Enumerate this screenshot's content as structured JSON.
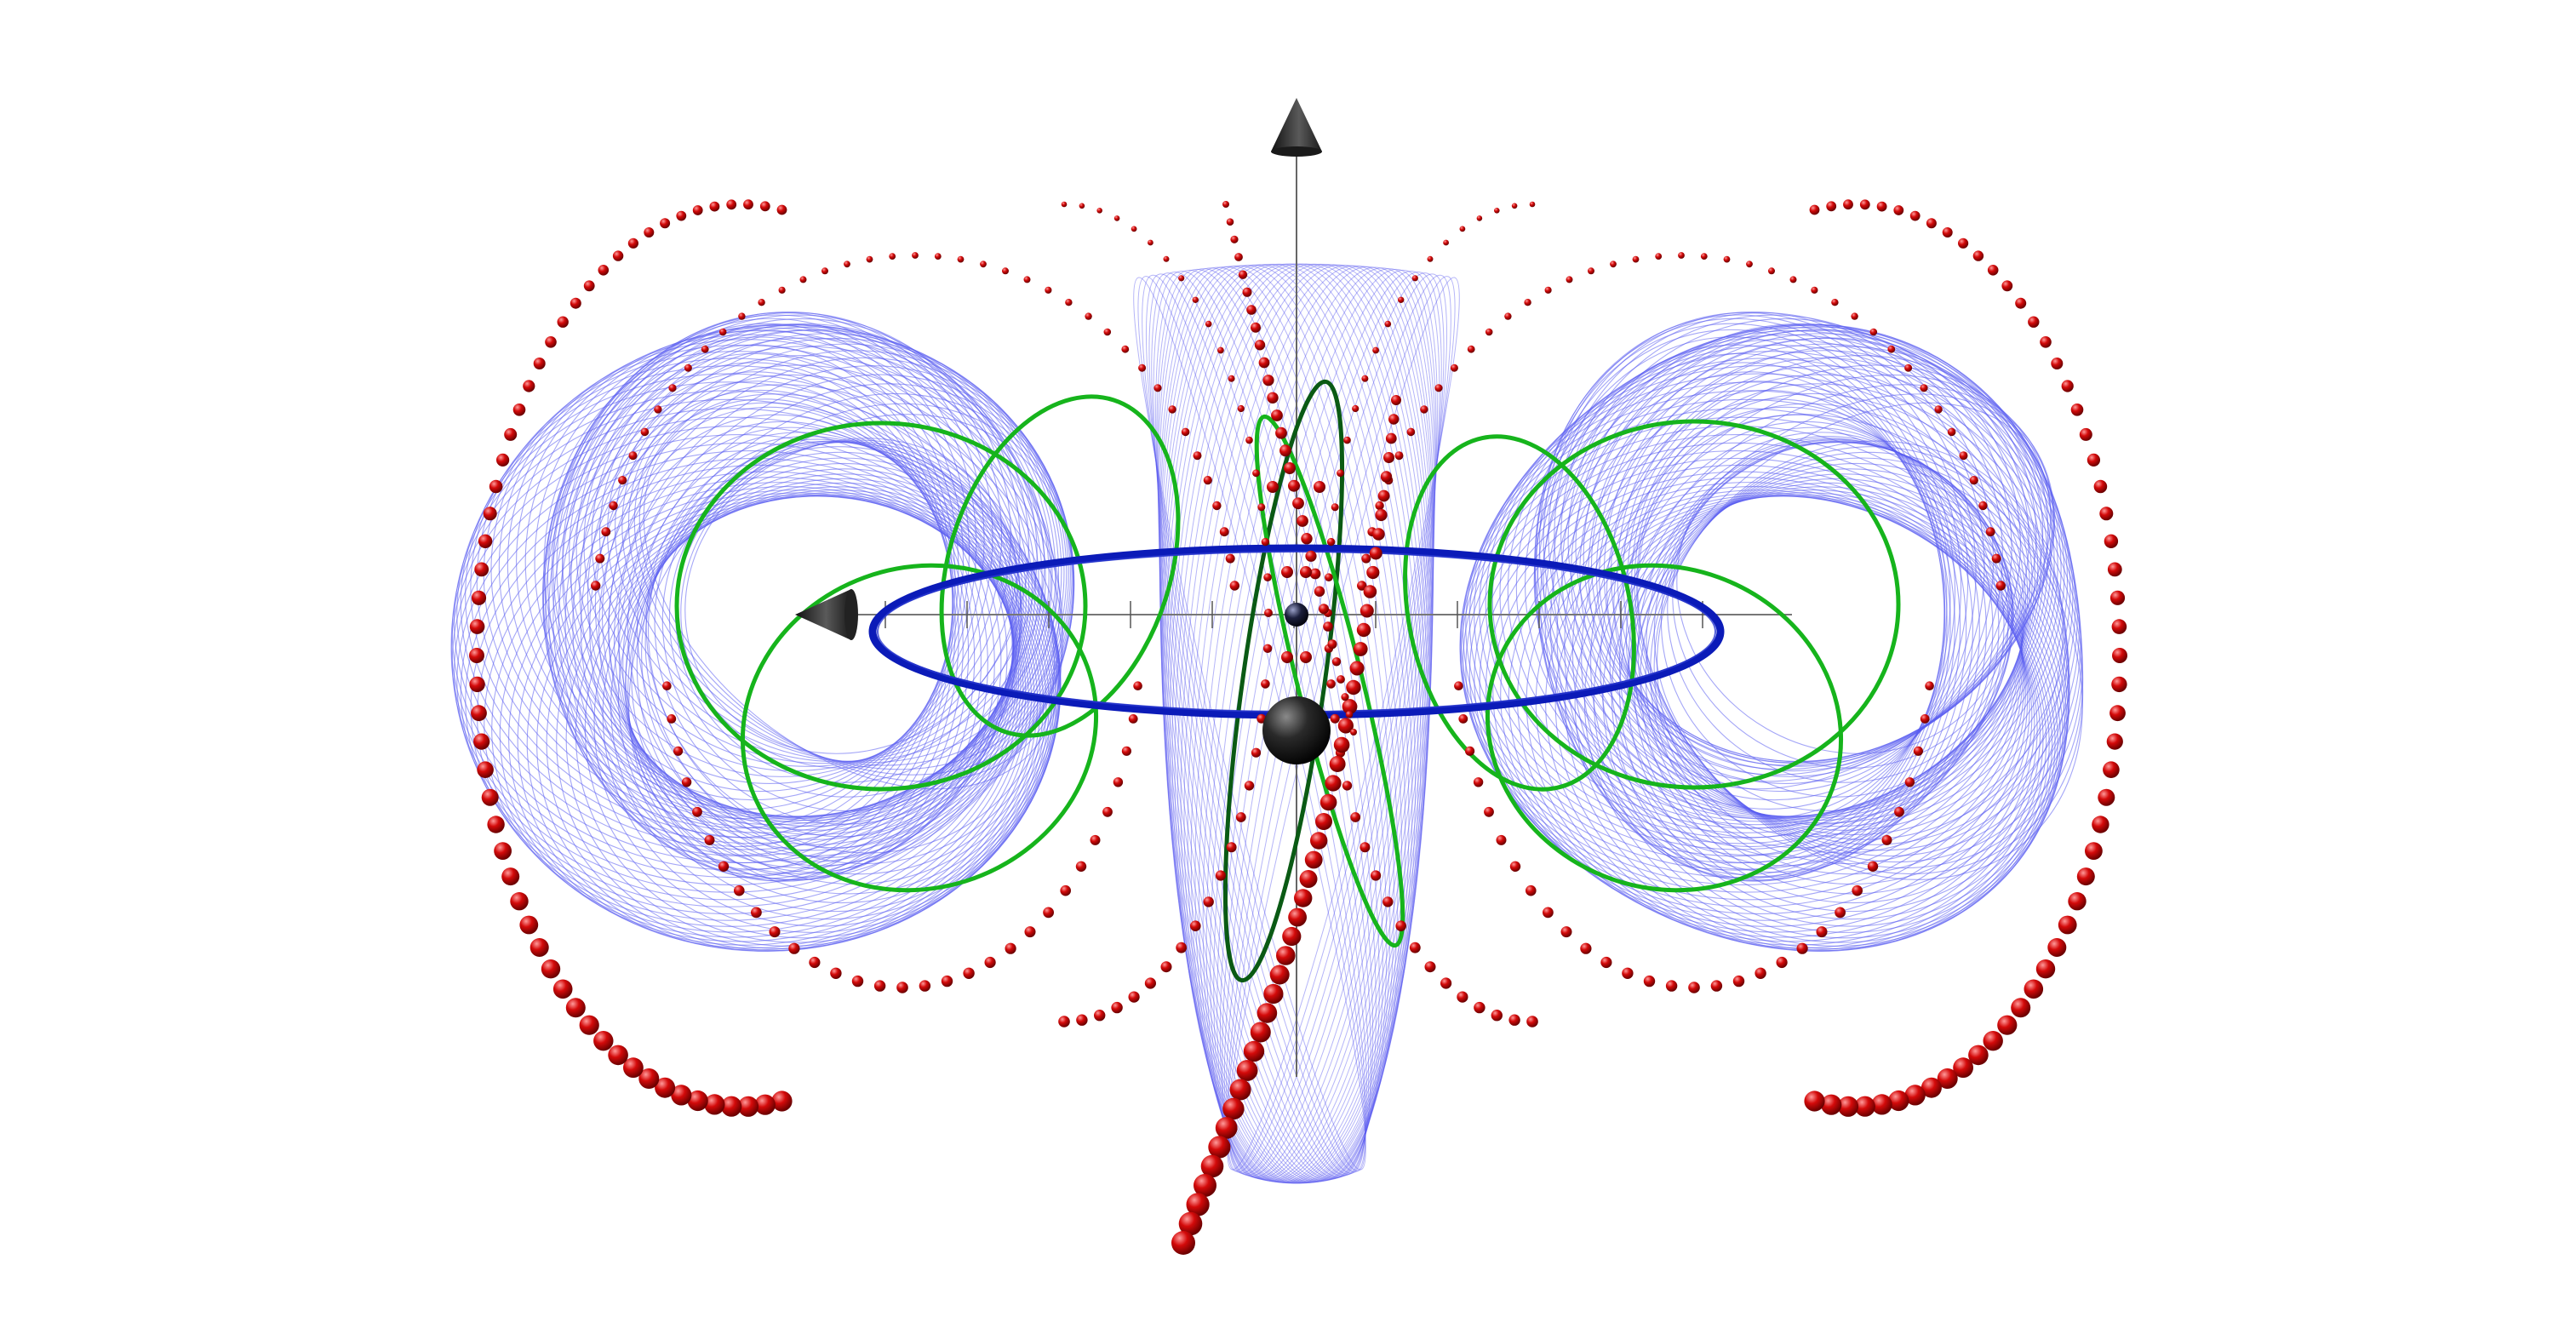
{
  "scene": {
    "background": "#ffffff",
    "colors": {
      "mesh": "#5a5cf0",
      "equator_ring": "#0b1bb8",
      "loops": "#16b41c",
      "loops_dark": "#0a5a14",
      "beads": "#d40a0a",
      "bead_highlight": "#ff9a9a",
      "axes": "#555555",
      "arrowhead": "#2a2a2a",
      "sphere": "#1a1a1a"
    },
    "objects": [
      "left-torus-mesh",
      "right-torus-mesh",
      "central-lobe-mesh",
      "equator-ring",
      "green-field-loops",
      "red-point-chains",
      "vertical-axis",
      "horizontal-axis",
      "axis-arrowhead-up",
      "axis-arrowhead-left",
      "center-sphere",
      "small-center-sphere"
    ]
  }
}
